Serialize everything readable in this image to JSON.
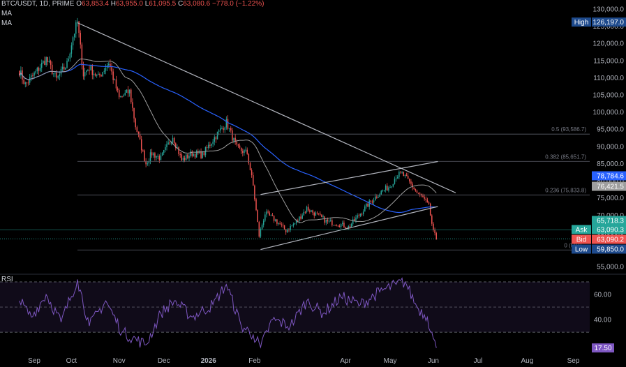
{
  "header": {
    "symbol": "BTC/USDT, 1D, PRIME",
    "o_key": "O",
    "o_val": "63,853.4",
    "h_key": "H",
    "h_val": "63,955.0",
    "l_key": "L",
    "l_val": "61,095.5",
    "c_key": "C",
    "c_val": "63,080.6",
    "change": "−778.0 (−1.22%)"
  },
  "indicators": {
    "ma1": "MA",
    "ma2": "MA",
    "rsi": "RSI"
  },
  "colors": {
    "up": "#26a69a",
    "down": "#ef5350",
    "ma_long": "#2962ff",
    "ma_short": "#9e9e9e",
    "rsi": "#7e57c2",
    "trend": "#b2b5be",
    "high": "#1e4a8c",
    "ask": "#26a69a",
    "bid": "#ef5350",
    "low": "#1e4a8c",
    "ma_tag_blue": "#2962ff",
    "ma_tag_gray": "#9e9e9e"
  },
  "chart_data": [
    {
      "type": "candlestick",
      "title": "BTC/USDT, 1D, PRIME",
      "x_ticks": [
        "Sep",
        "Oct",
        "Nov",
        "Dec",
        "2026",
        "Feb",
        "Apr",
        "May",
        "Jun",
        "Jul",
        "Aug",
        "Sep"
      ],
      "y_ticks": [
        130000,
        125000,
        120000,
        115000,
        110000,
        105000,
        100000,
        95000,
        90000,
        85000,
        80000,
        75000,
        70000,
        65000,
        60000,
        55000
      ],
      "y_tick_labels": [
        "130,000.0",
        "125,000.0",
        "120,000.0",
        "115,000.0",
        "110,000.0",
        "105,000.0",
        "100,000.0",
        "95,000.0",
        "90,000.0",
        "85,000.0",
        "80,000.0",
        "75,000.0",
        "70,000.0",
        "65,000.0",
        "60,000.0",
        "55,000.0"
      ],
      "ylim": [
        53000,
        131000
      ],
      "close_path": [
        [
          "2025-08-28",
          112000
        ],
        [
          "2025-09-01",
          108000
        ],
        [
          "2025-09-08",
          111500
        ],
        [
          "2025-09-15",
          115500
        ],
        [
          "2025-09-22",
          109500
        ],
        [
          "2025-09-29",
          114000
        ],
        [
          "2025-10-03",
          122000
        ],
        [
          "2025-10-06",
          126197
        ],
        [
          "2025-10-10",
          111000
        ],
        [
          "2025-10-14",
          113000
        ],
        [
          "2025-10-20",
          110000
        ],
        [
          "2025-10-27",
          114500
        ],
        [
          "2025-11-03",
          104000
        ],
        [
          "2025-11-10",
          106000
        ],
        [
          "2025-11-14",
          96000
        ],
        [
          "2025-11-21",
          85000
        ],
        [
          "2025-11-25",
          88000
        ],
        [
          "2025-12-01",
          86500
        ],
        [
          "2025-12-09",
          93000
        ],
        [
          "2025-12-15",
          86000
        ],
        [
          "2025-12-22",
          88000
        ],
        [
          "2025-12-29",
          87500
        ],
        [
          "2026-01-05",
          92000
        ],
        [
          "2026-01-14",
          97000
        ],
        [
          "2026-01-21",
          89500
        ],
        [
          "2026-01-28",
          88000
        ],
        [
          "2026-02-01",
          78500
        ],
        [
          "2026-02-05",
          64000
        ],
        [
          "2026-02-09",
          70500
        ],
        [
          "2026-02-16",
          68500
        ],
        [
          "2026-02-23",
          65500
        ],
        [
          "2026-03-02",
          68000
        ],
        [
          "2026-03-09",
          72000
        ],
        [
          "2026-03-16",
          70000
        ],
        [
          "2026-03-23",
          68000
        ],
        [
          "2026-03-30",
          67500
        ],
        [
          "2026-04-06",
          66500
        ],
        [
          "2026-04-13",
          70000
        ],
        [
          "2026-04-20",
          73500
        ],
        [
          "2026-04-27",
          76500
        ],
        [
          "2026-05-04",
          78500
        ],
        [
          "2026-05-08",
          81500
        ],
        [
          "2026-05-12",
          82000
        ],
        [
          "2026-05-18",
          79000
        ],
        [
          "2026-05-22",
          76500
        ],
        [
          "2026-05-26",
          75000
        ],
        [
          "2026-05-30",
          72500
        ],
        [
          "2026-06-02",
          65000
        ],
        [
          "2026-06-04",
          63080.6
        ]
      ],
      "high": 126197.0,
      "low": 59850.0,
      "fibonacci": [
        {
          "ratio": "0",
          "label": "0 (59,9...",
          "value": 59850
        },
        {
          "ratio": "0.236",
          "label": "0.236 (75,833.8)",
          "value": 75833.8
        },
        {
          "ratio": "0.382",
          "label": "0.382 (85,651.7)",
          "value": 85651.7
        },
        {
          "ratio": "0.5",
          "label": "0.5 (93,586.7)",
          "value": 93586.7
        }
      ],
      "trendlines": [
        {
          "name": "resistance",
          "from": [
            "2025-10-06",
            126000
          ],
          "to": [
            "2026-06-17",
            76500
          ]
        },
        {
          "name": "channel-top",
          "from": [
            "2026-02-06",
            76000
          ],
          "to": [
            "2026-06-05",
            85600
          ]
        },
        {
          "name": "channel-bottom",
          "from": [
            "2026-02-06",
            60000
          ],
          "to": [
            "2026-06-05",
            72500
          ]
        }
      ],
      "price_tags": [
        {
          "name": "High",
          "label": "High",
          "value": "126,197.0",
          "y": 126197
        },
        {
          "name": "ma-long",
          "label": "",
          "value": "78,784.6",
          "y": 78784.6
        },
        {
          "name": "ma-short",
          "label": "",
          "value": "76,421.5",
          "y": 76421.5
        },
        {
          "name": "level",
          "label": "",
          "value": "65,718.3",
          "y": 65718.3
        },
        {
          "name": "Ask",
          "label": "Ask",
          "value": "63,090.3",
          "y": 63090.3
        },
        {
          "name": "Bid",
          "label": "Bid",
          "value": "63,090.2",
          "y": 63090.2
        },
        {
          "name": "Low",
          "label": "Low",
          "value": "59,850.0",
          "y": 59850
        }
      ]
    },
    {
      "type": "line",
      "title": "RSI",
      "y_ticks": [
        60,
        40
      ],
      "y_tick_labels": [
        "60.00",
        "40.00"
      ],
      "bands": [
        70,
        50,
        30
      ],
      "ylim": [
        14,
        75
      ],
      "current": 17.5,
      "current_label": "17.50",
      "series": [
        {
          "values": [
            [
              "2025-08-28",
              55
            ],
            [
              "2025-09-05",
              42
            ],
            [
              "2025-09-15",
              60
            ],
            [
              "2025-09-25",
              38
            ],
            [
              "2025-10-06",
              72
            ],
            [
              "2025-10-14",
              35
            ],
            [
              "2025-10-25",
              55
            ],
            [
              "2025-11-05",
              30
            ],
            [
              "2025-11-21",
              20
            ],
            [
              "2025-12-01",
              45
            ],
            [
              "2025-12-10",
              55
            ],
            [
              "2025-12-22",
              42
            ],
            [
              "2026-01-05",
              52
            ],
            [
              "2026-01-14",
              68
            ],
            [
              "2026-01-24",
              35
            ],
            [
              "2026-02-01",
              28
            ],
            [
              "2026-02-06",
              18
            ],
            [
              "2026-02-14",
              40
            ],
            [
              "2026-02-26",
              35
            ],
            [
              "2026-03-09",
              55
            ],
            [
              "2026-03-20",
              45
            ],
            [
              "2026-04-01",
              58
            ],
            [
              "2026-04-14",
              52
            ],
            [
              "2026-04-27",
              62
            ],
            [
              "2026-05-08",
              68
            ],
            [
              "2026-05-14",
              70
            ],
            [
              "2026-05-22",
              50
            ],
            [
              "2026-05-29",
              42
            ],
            [
              "2026-06-02",
              25
            ],
            [
              "2026-06-04",
              17.5
            ]
          ]
        }
      ]
    }
  ]
}
